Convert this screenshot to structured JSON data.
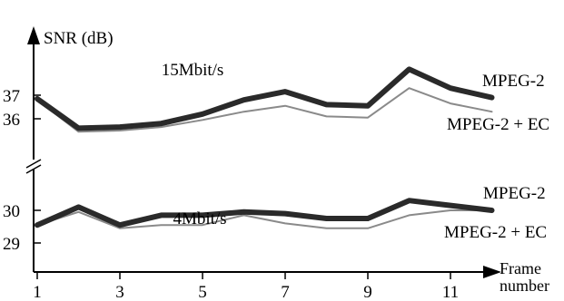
{
  "chart_data": {
    "type": "line",
    "ylabel": "SNR (dB)",
    "xlabel": [
      "Frame",
      "number"
    ],
    "x_ticks": [
      1,
      3,
      5,
      7,
      9,
      11
    ],
    "xlim": [
      1,
      12
    ],
    "y_axis_break": true,
    "panels": [
      {
        "name": "15Mbit/s",
        "ylim": [
          35.2,
          38.2
        ],
        "y_ticks": [
          36,
          37
        ],
        "series": [
          {
            "name": "MPEG-2",
            "style": "thick-dark",
            "x": [
              1,
              2,
              3,
              4,
              5,
              6,
              7,
              8,
              9,
              10,
              11,
              12
            ],
            "values": [
              36.85,
              35.6,
              35.65,
              35.8,
              36.2,
              36.8,
              37.15,
              36.6,
              36.55,
              38.1,
              37.3,
              36.9
            ]
          },
          {
            "name": "MPEG-2 + EC",
            "style": "thin-gray",
            "x": [
              1,
              2,
              3,
              4,
              5,
              6,
              7,
              8,
              9,
              10,
              11,
              12
            ],
            "values": [
              36.8,
              35.45,
              35.5,
              35.65,
              35.95,
              36.3,
              36.55,
              36.1,
              36.05,
              37.3,
              36.65,
              36.3
            ]
          }
        ]
      },
      {
        "name": "4Mbit/s",
        "ylim": [
          28.6,
          30.8
        ],
        "y_ticks": [
          29,
          30
        ],
        "series": [
          {
            "name": "MPEG-2",
            "style": "thick-dark",
            "x": [
              1,
              2,
              3,
              4,
              5,
              6,
              7,
              8,
              9,
              10,
              11,
              12
            ],
            "values": [
              29.55,
              30.1,
              29.55,
              29.85,
              29.85,
              29.95,
              29.9,
              29.75,
              29.75,
              30.3,
              30.15,
              30.0
            ]
          },
          {
            "name": "MPEG-2 + EC",
            "style": "thin-gray",
            "x": [
              1,
              2,
              3,
              4,
              5,
              6,
              7,
              8,
              9,
              10,
              11,
              12
            ],
            "values": [
              29.55,
              29.95,
              29.45,
              29.55,
              29.55,
              29.85,
              29.6,
              29.45,
              29.45,
              29.85,
              30.0,
              30.0
            ]
          }
        ]
      }
    ],
    "colors": {
      "thick-dark": "#2a2a2a",
      "thin-gray": "#8a8a8a",
      "axis": "#000000"
    }
  }
}
